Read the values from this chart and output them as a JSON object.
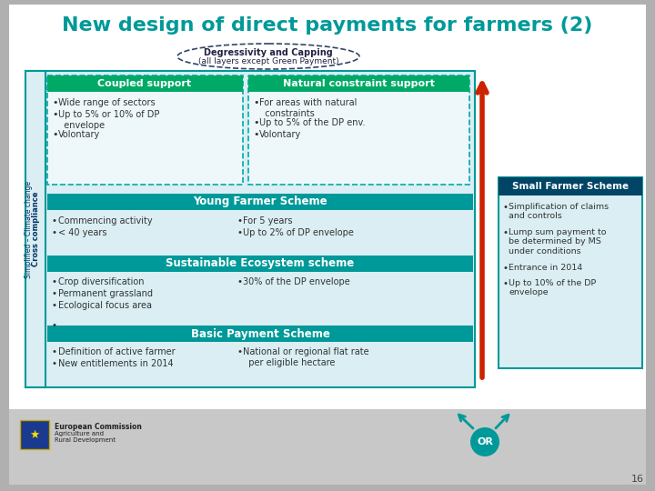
{
  "title": "New design of direct payments for farmers (2)",
  "title_color": "#009999",
  "bg_color": "#b0b0b0",
  "ellipse_text1": "Degressivity and Capping",
  "ellipse_text2": "(all layers except Green Payment)",
  "teal_color": "#009999",
  "teal_dark": "#007a7a",
  "green_header": "#00aa66",
  "light_blue": "#daeef3",
  "dashed_color": "#00aaaa",
  "dark_blue_hdr": "#003366",
  "coupled_header": "Coupled support",
  "coupled_bullets": [
    "Wide range of sectors",
    "Up to 5% or 10% of DP\n  envelope",
    "Volontary"
  ],
  "natural_header": "Natural constraint support",
  "natural_bullets": [
    "For areas with natural\n  constraints",
    "Up to 5% of the DP env.",
    "Volontary"
  ],
  "young_header": "Young Farmer Scheme",
  "young_left": [
    "Commencing activity",
    "< 40 years"
  ],
  "young_right": [
    "For 5 years",
    "Up to 2% of DP envelope"
  ],
  "sustain_header": "Sustainable Ecosystem scheme",
  "sustain_left": [
    "Crop diversification",
    "Permanent grassland",
    "Ecological focus area"
  ],
  "sustain_right": [
    "30% of the DP envelope"
  ],
  "basic_header": "Basic Payment Scheme",
  "basic_left": [
    "Definition of active farmer",
    "New entitlements in 2014"
  ],
  "basic_right": [
    "National or regional flat rate\n  per eligible hectare"
  ],
  "small_farmer_header": "Small Farmer Scheme",
  "small_farmer_bullets": [
    "Simplification of claims\nand controls",
    "Lump sum payment to\nbe determined by MS\nunder conditions",
    "Entrance in 2014",
    "Up to 10% of the DP\nenvelope"
  ],
  "cross_label1": "Cross compliance",
  "cross_label2": "Simplified – Climate change",
  "or_text": "OR",
  "page_num": "16"
}
